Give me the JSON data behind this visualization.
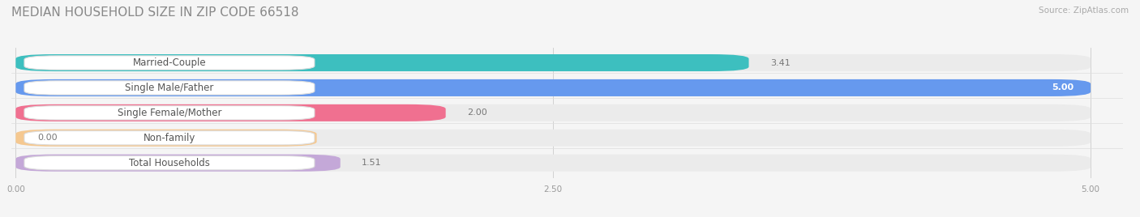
{
  "title": "MEDIAN HOUSEHOLD SIZE IN ZIP CODE 66518",
  "source": "Source: ZipAtlas.com",
  "categories": [
    "Married-Couple",
    "Single Male/Father",
    "Single Female/Mother",
    "Non-family",
    "Total Households"
  ],
  "values": [
    3.41,
    5.0,
    2.0,
    0.0,
    1.51
  ],
  "bar_colors": [
    "#3DBFBF",
    "#6699EE",
    "#F07090",
    "#F5C890",
    "#C4A8D8"
  ],
  "bar_bg_color": "#EBEBEB",
  "xlim_max": 5.0,
  "xticks": [
    0.0,
    2.5,
    5.0
  ],
  "xtick_labels": [
    "0.00",
    "2.50",
    "5.00"
  ],
  "title_fontsize": 11,
  "label_fontsize": 8.5,
  "value_fontsize": 8.0,
  "source_fontsize": 7.5,
  "bar_height": 0.68,
  "background_color": "#F5F5F5"
}
